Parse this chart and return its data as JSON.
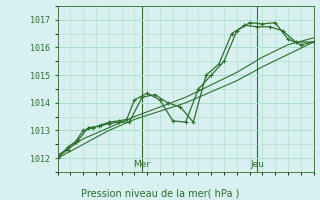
{
  "title": "",
  "xlabel": "Pression niveau de la mer( hPa )",
  "ylabel": "",
  "bg_color": "#d8f0f0",
  "grid_color": "#aaddcc",
  "line_color": "#2d6e2d",
  "tick_color": "#2d6e2d",
  "ylim": [
    1011.5,
    1017.5
  ],
  "yticks": [
    1012,
    1013,
    1014,
    1015,
    1016,
    1017
  ],
  "day_labels": [
    "Mer",
    "Jeu"
  ],
  "day_positions": [
    0.33,
    0.78
  ],
  "series": {
    "line1_x": [
      0.0,
      0.04,
      0.07,
      0.1,
      0.14,
      0.17,
      0.2,
      0.24,
      0.27,
      0.3,
      0.35,
      0.4,
      0.45,
      0.5,
      0.55,
      0.6,
      0.65,
      0.7,
      0.75,
      0.8,
      0.85,
      0.9,
      0.95,
      1.0
    ],
    "line1_y": [
      1012.0,
      1012.4,
      1012.6,
      1013.0,
      1013.1,
      1013.2,
      1013.3,
      1013.35,
      1013.4,
      1014.1,
      1014.35,
      1014.1,
      1013.35,
      1013.3,
      1014.5,
      1015.0,
      1015.5,
      1016.6,
      1016.9,
      1016.85,
      1016.9,
      1016.3,
      1016.1,
      1016.2
    ],
    "line2_x": [
      0.0,
      0.04,
      0.08,
      0.12,
      0.16,
      0.2,
      0.24,
      0.28,
      0.33,
      0.38,
      0.43,
      0.48,
      0.53,
      0.58,
      0.63,
      0.68,
      0.73,
      0.78,
      0.83,
      0.88,
      0.93,
      1.0
    ],
    "line2_y": [
      1012.05,
      1012.3,
      1012.65,
      1013.1,
      1013.15,
      1013.25,
      1013.3,
      1013.3,
      1014.2,
      1014.3,
      1014.0,
      1013.85,
      1013.3,
      1015.0,
      1015.4,
      1016.5,
      1016.8,
      1016.75,
      1016.75,
      1016.6,
      1016.2,
      1016.2
    ],
    "line3_x": [
      0.0,
      0.1,
      0.2,
      0.3,
      0.4,
      0.5,
      0.6,
      0.7,
      0.8,
      0.9,
      1.0
    ],
    "line3_y": [
      1012.0,
      1012.5,
      1013.0,
      1013.4,
      1013.7,
      1014.0,
      1014.4,
      1014.8,
      1015.3,
      1015.75,
      1016.2
    ],
    "line4_x": [
      0.0,
      0.1,
      0.2,
      0.3,
      0.4,
      0.5,
      0.6,
      0.7,
      0.8,
      0.9,
      1.0
    ],
    "line4_y": [
      1012.1,
      1012.7,
      1013.1,
      1013.5,
      1013.85,
      1014.2,
      1014.65,
      1015.1,
      1015.65,
      1016.1,
      1016.35
    ]
  }
}
